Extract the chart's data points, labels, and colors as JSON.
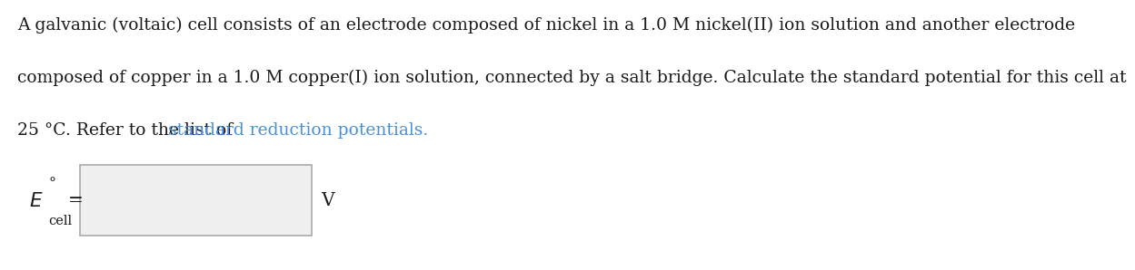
{
  "background_color": "#ffffff",
  "line1": "A galvanic (voltaic) cell consists of an electrode composed of nickel in a 1.0 M nickel(II) ion solution and another electrode",
  "line2": "composed of copper in a 1.0 M copper(I) ion solution, connected by a salt bridge. Calculate the standard potential for this cell at",
  "line3_normal": "25 °C. Refer to the list of ",
  "line3_link": "standard reduction potentials.",
  "link_color": "#4a90d9",
  "normal_text_color": "#1a1a1a",
  "font_size": 13.5,
  "label_unit": "V",
  "input_box_color": "#f0f0f0",
  "input_box_edge_color": "#aaaaaa"
}
